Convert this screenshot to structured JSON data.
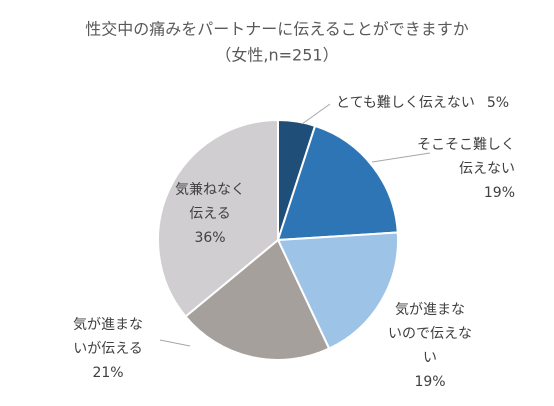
{
  "chart_data": {
    "type": "pie",
    "title": "性交中の痛みをパートナーに伝えることができますか",
    "subtitle": "（女性,n=251）",
    "categories": [
      "とても難しく伝えない",
      "そこそこ難しく伝えない",
      "気が進まないので伝えない",
      "気が進まないが伝える",
      "気兼ねなく伝える"
    ],
    "values": [
      5,
      19,
      19,
      21,
      36
    ],
    "value_labels": [
      "5%",
      "19%",
      "19%",
      "21%",
      "36%"
    ],
    "colors": [
      "#1f4e79",
      "#2e75b6",
      "#9dc3e6",
      "#a5a09c",
      "#d0ced0"
    ]
  }
}
